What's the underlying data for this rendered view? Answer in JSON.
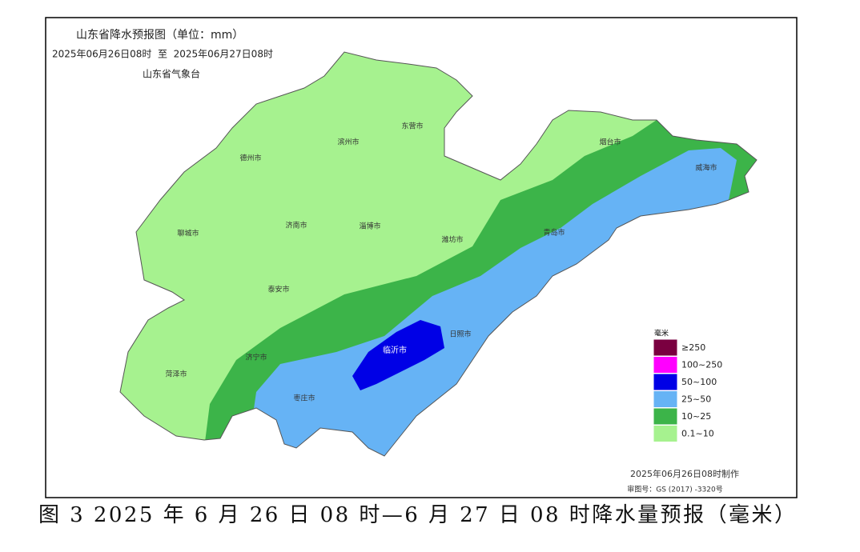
{
  "header": {
    "title": "山东省降水预报图（单位：mm）",
    "period": "2025年06月26日08时  至  2025年06月27日08时",
    "issuer": "山东省气象台"
  },
  "cities": [
    "东营市",
    "滨州市",
    "德州市",
    "烟台市",
    "威海市",
    "聊城市",
    "济南市",
    "淄博市",
    "潍坊市",
    "青岛市",
    "泰安市",
    "日照市",
    "临沂市",
    "济宁市",
    "菏泽市",
    "枣庄市"
  ],
  "legend": {
    "title": "毫米",
    "items": [
      {
        "label": "≥250",
        "color": "#7a0040"
      },
      {
        "label": "100~250",
        "color": "#ff00ff"
      },
      {
        "label": "50~100",
        "color": "#0000e6"
      },
      {
        "label": "25~50",
        "color": "#66b3f5"
      },
      {
        "label": "10~25",
        "color": "#3cb449"
      },
      {
        "label": "0.1~10",
        "color": "#a6f28f"
      }
    ]
  },
  "footer": {
    "made": "2025年06月26日08时制作",
    "review": "审图号：GS (2017) -3320号"
  },
  "caption": "图 3 2025 年 6 月 26 日 08 时—6 月 27 日 08 时降水量预报（毫米）"
}
